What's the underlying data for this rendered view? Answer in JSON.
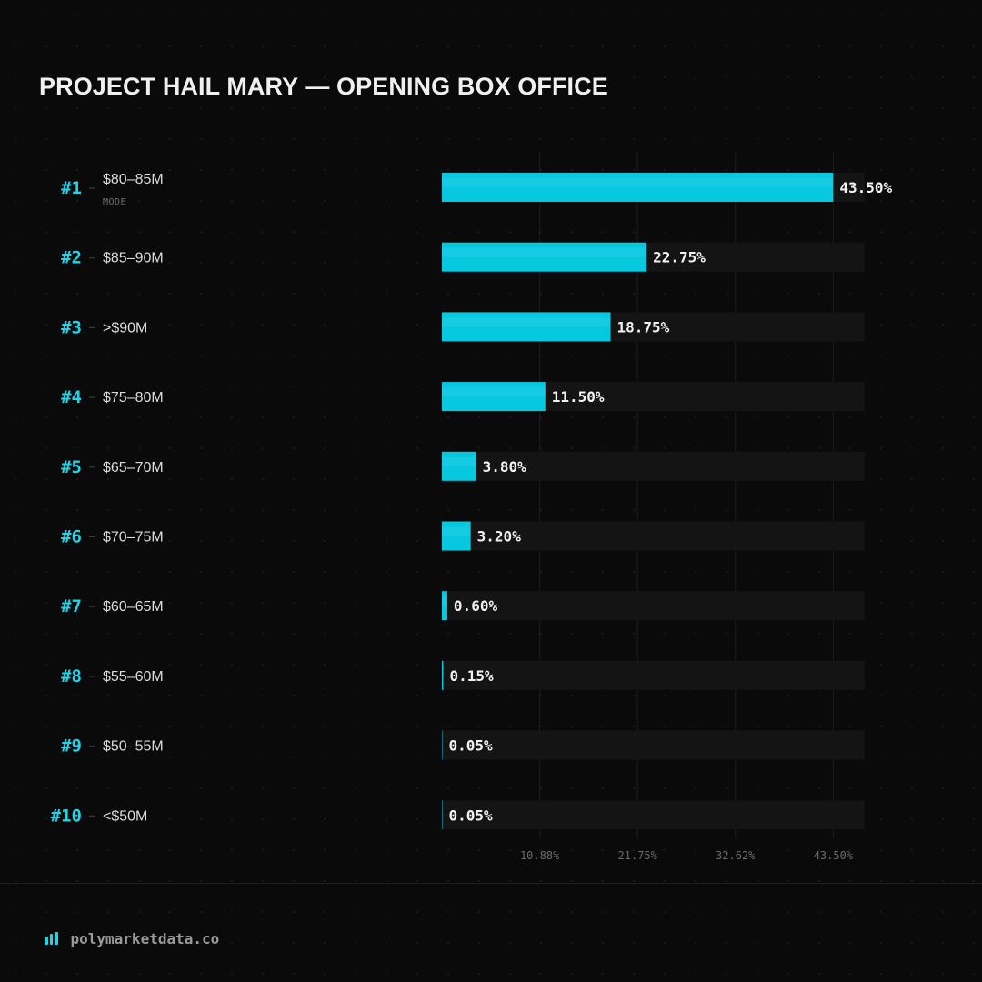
{
  "colors": {
    "accent": "#06c9e0",
    "accent_text": "#22d3e8",
    "track": "#141414",
    "background": "#0a0a0a"
  },
  "footer": {
    "site": "polymarketdata.co",
    "icon": "bar-chart-icon"
  },
  "chart_data": {
    "type": "bar",
    "orientation": "horizontal",
    "title": "PROJECT HAIL MARY — OPENING BOX OFFICE",
    "ranks": [
      "#1",
      "#2",
      "#3",
      "#4",
      "#5",
      "#6",
      "#7",
      "#8",
      "#9",
      "#10"
    ],
    "categories": [
      "$80–85M",
      "$85–90M",
      ">$90M",
      "$75–80M",
      "$65–70M",
      "$70–75M",
      "$60–65M",
      "$55–60M",
      "$50–55M",
      "<$50M"
    ],
    "values": [
      43.5,
      22.75,
      18.75,
      11.5,
      3.8,
      3.2,
      0.6,
      0.15,
      0.05,
      0.05
    ],
    "value_labels": [
      "43.50%",
      "22.75%",
      "18.75%",
      "11.50%",
      "3.80%",
      "3.20%",
      "0.60%",
      "0.15%",
      "0.05%",
      "0.05%"
    ],
    "mode_index": 0,
    "mode_label": "MODE",
    "xlim": [
      0,
      47
    ],
    "ticks": [
      10.88,
      21.75,
      32.62,
      43.5
    ],
    "tick_labels": [
      "10.88%",
      "21.75%",
      "32.62%",
      "43.50%"
    ],
    "xlabel": "",
    "ylabel": "",
    "grid": true
  }
}
